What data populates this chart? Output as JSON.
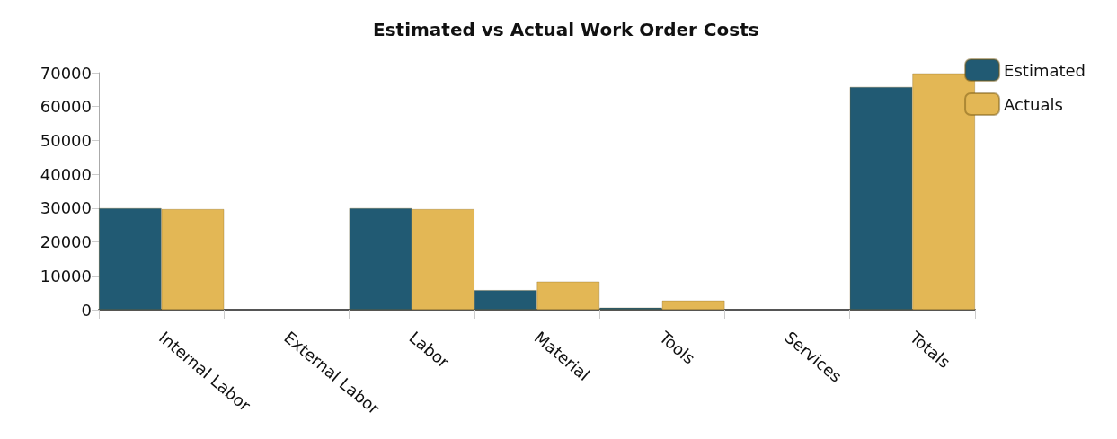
{
  "chart_data": {
    "type": "bar",
    "title": "Estimated vs Actual Work Order Costs",
    "categories": [
      "Internal Labor",
      "External Labor",
      "Labor",
      "Material",
      "Tools",
      "Services",
      "Totals"
    ],
    "series": [
      {
        "name": "Estimated",
        "color": "#215a73",
        "values": [
          30000,
          null,
          30000,
          5800,
          600,
          null,
          65800
        ]
      },
      {
        "name": "Actuals",
        "color": "#e3b755",
        "values": [
          29700,
          null,
          29700,
          8300,
          2700,
          null,
          69800
        ]
      }
    ],
    "ylim": [
      0,
      70000
    ],
    "yticks": [
      0,
      10000,
      20000,
      30000,
      40000,
      50000,
      60000,
      70000
    ],
    "grid": false,
    "legend": "top right"
  }
}
